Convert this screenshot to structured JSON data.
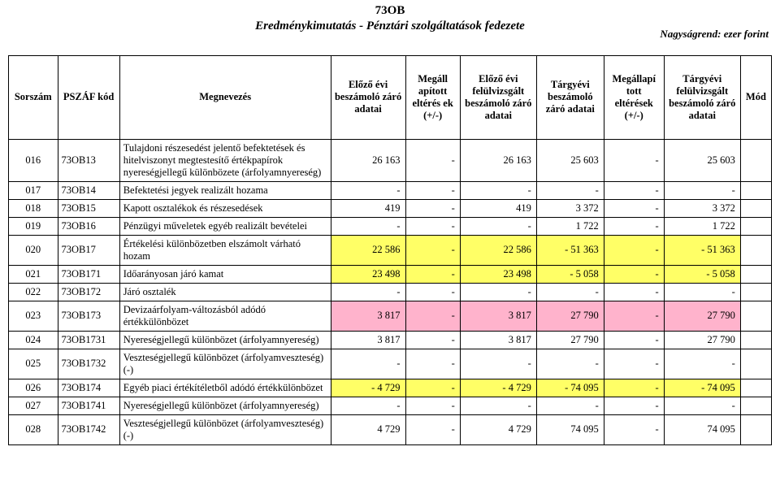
{
  "header": {
    "code": "73OB",
    "subtitle": "Eredménykimutatás - Pénztári szolgáltatások fedezete",
    "unit": "Nagyságrend: ezer forint"
  },
  "columns": [
    "Sorszám",
    "PSZÁF kód",
    "Megnevezés",
    "Előző évi beszámoló záró adatai",
    "Megáll apított eltérés ek (+/-)",
    "Előző évi felülvizsgált beszámoló záró adatai",
    "Tárgyévi beszámoló záró adatai",
    "Megállapí tott eltérések (+/-)",
    "Tárgyévi felülvizsgált beszámoló záró adatai",
    "Mód"
  ],
  "rows": [
    {
      "hl": "none",
      "s": "016",
      "k": "73OB13",
      "m": "Tulajdoni részesedést jelentő befektetések és hitelviszonyt megtestesítő értékpapírok nyereségjellegű különbözete (árfolyamnyereség)",
      "v": [
        "26 163",
        "-",
        "26 163",
        "25 603",
        "-",
        "25 603"
      ],
      "mod": ""
    },
    {
      "hl": "none",
      "s": "017",
      "k": "73OB14",
      "m": "Befektetési jegyek realizált hozama",
      "v": [
        "-",
        "-",
        "-",
        "-",
        "-",
        "-"
      ],
      "mod": ""
    },
    {
      "hl": "none",
      "s": "018",
      "k": "73OB15",
      "m": "Kapott osztalékok és részesedések",
      "v": [
        "419",
        "-",
        "419",
        "3 372",
        "-",
        "3 372"
      ],
      "mod": ""
    },
    {
      "hl": "none",
      "s": "019",
      "k": "73OB16",
      "m": "Pénzügyi műveletek egyéb realizált bevételei",
      "v": [
        "-",
        "-",
        "-",
        "1 722",
        "-",
        "1 722"
      ],
      "mod": ""
    },
    {
      "hl": "yellow",
      "s": "020",
      "k": "73OB17",
      "m": "Értékelési különbözetben elszámolt várható hozam",
      "v": [
        "22 586",
        "-",
        "22 586",
        "-   51 363",
        "-",
        "-   51 363"
      ],
      "mod": ""
    },
    {
      "hl": "yellow",
      "s": "021",
      "k": "73OB171",
      "m": "Időarányosan járó kamat",
      "v": [
        "23 498",
        "-",
        "23 498",
        "-     5 058",
        "-",
        "-     5 058"
      ],
      "mod": ""
    },
    {
      "hl": "none",
      "s": "022",
      "k": "73OB172",
      "m": "Járó osztalék",
      "v": [
        "-",
        "-",
        "-",
        "-",
        "-",
        "-"
      ],
      "mod": ""
    },
    {
      "hl": "pink",
      "s": "023",
      "k": "73OB173",
      "m": "Devizaárfolyam-változásból adódó értékkülönbözet",
      "v": [
        "3 817",
        "-",
        "3 817",
        "27 790",
        "-",
        "27 790"
      ],
      "mod": ""
    },
    {
      "hl": "none",
      "s": "024",
      "k": "73OB1731",
      "m": "Nyereségjellegű különbözet (árfolyamnyereség)",
      "v": [
        "3 817",
        "-",
        "3 817",
        "27 790",
        "-",
        "27 790"
      ],
      "mod": ""
    },
    {
      "hl": "none",
      "s": "025",
      "k": "73OB1732",
      "m": "Veszteségjellegű különbözet (árfolyamveszteség) (-)",
      "v": [
        "-",
        "-",
        "-",
        "-",
        "-",
        "-"
      ],
      "mod": ""
    },
    {
      "hl": "yellow",
      "s": "026",
      "k": "73OB174",
      "m": "Egyéb piaci értékítéletből adódó értékkülönbözet",
      "v": [
        "-       4 729",
        "-",
        "-       4 729",
        "-   74 095",
        "-",
        "-   74 095"
      ],
      "mod": ""
    },
    {
      "hl": "none",
      "s": "027",
      "k": "73OB1741",
      "m": "Nyereségjellegű különbözet (árfolyamnyereség)",
      "v": [
        "-",
        "-",
        "-",
        "-",
        "-",
        "-"
      ],
      "mod": ""
    },
    {
      "hl": "none",
      "s": "028",
      "k": "73OB1742",
      "m": "Veszteségjellegű különbözet (árfolyamveszteség) (-)",
      "v": [
        "4 729",
        "-",
        "4 729",
        "74 095",
        "-",
        "74 095"
      ],
      "mod": ""
    }
  ]
}
